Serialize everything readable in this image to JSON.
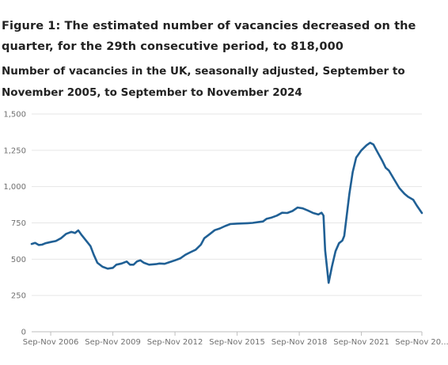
{
  "header": {
    "title": "Figure 1: The estimated number of vacancies decreased on the quarter, for the 29th consecutive period, to 818,000",
    "subtitle": "Number of vacancies in the UK, seasonally adjusted, September to November 2005, to September to November 2024"
  },
  "colors": {
    "line": "#206095",
    "grid": "#e6e6e6",
    "axis": "#bebebe",
    "tick_text": "#707070"
  },
  "chart_data": {
    "type": "line",
    "title": "Number of vacancies in the UK, seasonally adjusted, September to November 2005, to September to November 2024",
    "xlabel": "",
    "ylabel": "",
    "ylim": [
      0,
      1500
    ],
    "yticks": [
      0,
      250,
      500,
      750,
      1000,
      1250,
      1500
    ],
    "ytick_labels": [
      "0",
      "250",
      "500",
      "750",
      "1,000",
      "1,250",
      "1,500"
    ],
    "xlim": [
      2005.83,
      2024.67
    ],
    "xticks": [
      2006.75,
      2009.75,
      2012.75,
      2015.75,
      2018.75,
      2021.75,
      2024.67
    ],
    "xtick_labels": [
      "Sep-Nov 2006",
      "Sep-Nov 2009",
      "Sep-Nov 2012",
      "Sep-Nov 2015",
      "Sep-Nov 2018",
      "Sep-Nov 2021",
      "Sep-Nov 20..."
    ],
    "grid": true,
    "series": [
      {
        "points": [
          [
            2005.83,
            605
          ],
          [
            2006.0,
            612
          ],
          [
            2006.17,
            598
          ],
          [
            2006.33,
            600
          ],
          [
            2006.5,
            610
          ],
          [
            2006.75,
            618
          ],
          [
            2007.0,
            625
          ],
          [
            2007.25,
            645
          ],
          [
            2007.5,
            675
          ],
          [
            2007.75,
            688
          ],
          [
            2007.92,
            680
          ],
          [
            2008.08,
            698
          ],
          [
            2008.25,
            665
          ],
          [
            2008.5,
            620
          ],
          [
            2008.67,
            590
          ],
          [
            2008.83,
            530
          ],
          [
            2009.0,
            475
          ],
          [
            2009.25,
            448
          ],
          [
            2009.5,
            435
          ],
          [
            2009.75,
            440
          ],
          [
            2009.92,
            462
          ],
          [
            2010.17,
            470
          ],
          [
            2010.42,
            484
          ],
          [
            2010.58,
            462
          ],
          [
            2010.75,
            462
          ],
          [
            2010.92,
            485
          ],
          [
            2011.08,
            492
          ],
          [
            2011.25,
            475
          ],
          [
            2011.5,
            462
          ],
          [
            2011.83,
            466
          ],
          [
            2012.0,
            470
          ],
          [
            2012.25,
            468
          ],
          [
            2012.5,
            480
          ],
          [
            2012.75,
            492
          ],
          [
            2013.0,
            505
          ],
          [
            2013.25,
            530
          ],
          [
            2013.5,
            548
          ],
          [
            2013.75,
            565
          ],
          [
            2014.0,
            600
          ],
          [
            2014.17,
            645
          ],
          [
            2014.42,
            672
          ],
          [
            2014.67,
            700
          ],
          [
            2014.92,
            712
          ],
          [
            2015.17,
            728
          ],
          [
            2015.42,
            742
          ],
          [
            2015.75,
            745
          ],
          [
            2016.0,
            746
          ],
          [
            2016.25,
            748
          ],
          [
            2016.5,
            750
          ],
          [
            2016.75,
            755
          ],
          [
            2017.0,
            760
          ],
          [
            2017.17,
            778
          ],
          [
            2017.42,
            787
          ],
          [
            2017.67,
            800
          ],
          [
            2017.92,
            820
          ],
          [
            2018.17,
            818
          ],
          [
            2018.42,
            832
          ],
          [
            2018.67,
            856
          ],
          [
            2018.92,
            850
          ],
          [
            2019.17,
            835
          ],
          [
            2019.42,
            818
          ],
          [
            2019.67,
            808
          ],
          [
            2019.83,
            820
          ],
          [
            2019.92,
            800
          ],
          [
            2020.0,
            560
          ],
          [
            2020.17,
            337
          ],
          [
            2020.33,
            450
          ],
          [
            2020.5,
            555
          ],
          [
            2020.67,
            610
          ],
          [
            2020.83,
            628
          ],
          [
            2020.92,
            660
          ],
          [
            2021.17,
            950
          ],
          [
            2021.33,
            1100
          ],
          [
            2021.5,
            1200
          ],
          [
            2021.75,
            1250
          ],
          [
            2022.0,
            1285
          ],
          [
            2022.17,
            1302
          ],
          [
            2022.33,
            1290
          ],
          [
            2022.5,
            1245
          ],
          [
            2022.75,
            1180
          ],
          [
            2022.92,
            1130
          ],
          [
            2023.08,
            1110
          ],
          [
            2023.33,
            1050
          ],
          [
            2023.58,
            990
          ],
          [
            2023.83,
            950
          ],
          [
            2024.0,
            930
          ],
          [
            2024.25,
            910
          ],
          [
            2024.42,
            870
          ],
          [
            2024.67,
            818
          ]
        ]
      }
    ]
  }
}
